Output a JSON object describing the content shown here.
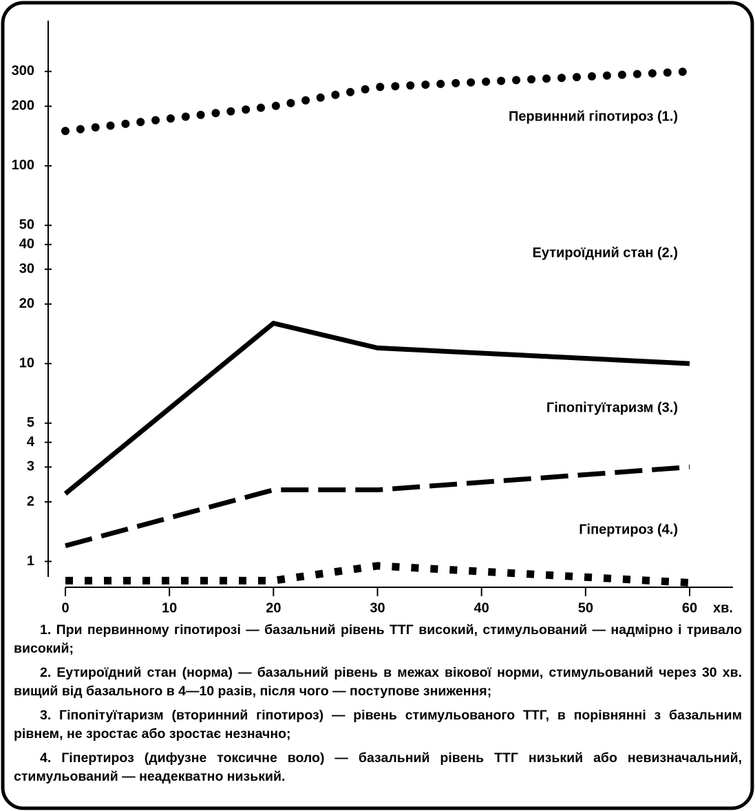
{
  "chart_data": {
    "type": "line",
    "xlabel": "хв.",
    "x": [
      0,
      20,
      30,
      60
    ],
    "xlim": [
      0,
      60
    ],
    "xticks": [
      0,
      10,
      20,
      30,
      40,
      50,
      60
    ],
    "ylim": [
      0.7,
      500
    ],
    "yticks": [
      1,
      2,
      3,
      4,
      5,
      10,
      20,
      30,
      40,
      50,
      100,
      200,
      300
    ],
    "log_y": true,
    "series": [
      {
        "name": "Первинний гіпотироз (1.)",
        "color": "#000000",
        "style": "dotted",
        "values": [
          150,
          200,
          250,
          300
        ]
      },
      {
        "name": "Еутироїдний стан (2.)",
        "color": "#000000",
        "style": "solid",
        "values": [
          2.2,
          16,
          12,
          10
        ]
      },
      {
        "name": "Гіпопітуїтаризм (3.)",
        "color": "#000000",
        "style": "dashed",
        "values": [
          1.2,
          2.3,
          2.3,
          3
        ]
      },
      {
        "name": "Гіпертироз (4.)",
        "color": "#000000",
        "style": "square-dotted",
        "values": [
          0.8,
          0.8,
          0.95,
          0.78
        ]
      }
    ]
  },
  "notes": [
    "1. При первинному гіпотирозі — базальний рівень ТТГ високий, стимульований — надмірно і тривало високий;",
    "2. Еутироїдний стан (норма) — базальний рівень в межах вікової норми, стимульований через 30 хв. вищий від базального в 4—10 разів, після чого — поступове зниження;",
    "3. Гіпопітуїтаризм (вторинний гіпотироз) — рівень стимульованого ТТГ, в порівнянні з базальним рівнем, не зростає або зростає незначно;",
    "4. Гіпертироз (дифузне токсичне воло) — базальний рівень ТТГ низький або невизначальний, стимульований — неадекватно низький."
  ]
}
